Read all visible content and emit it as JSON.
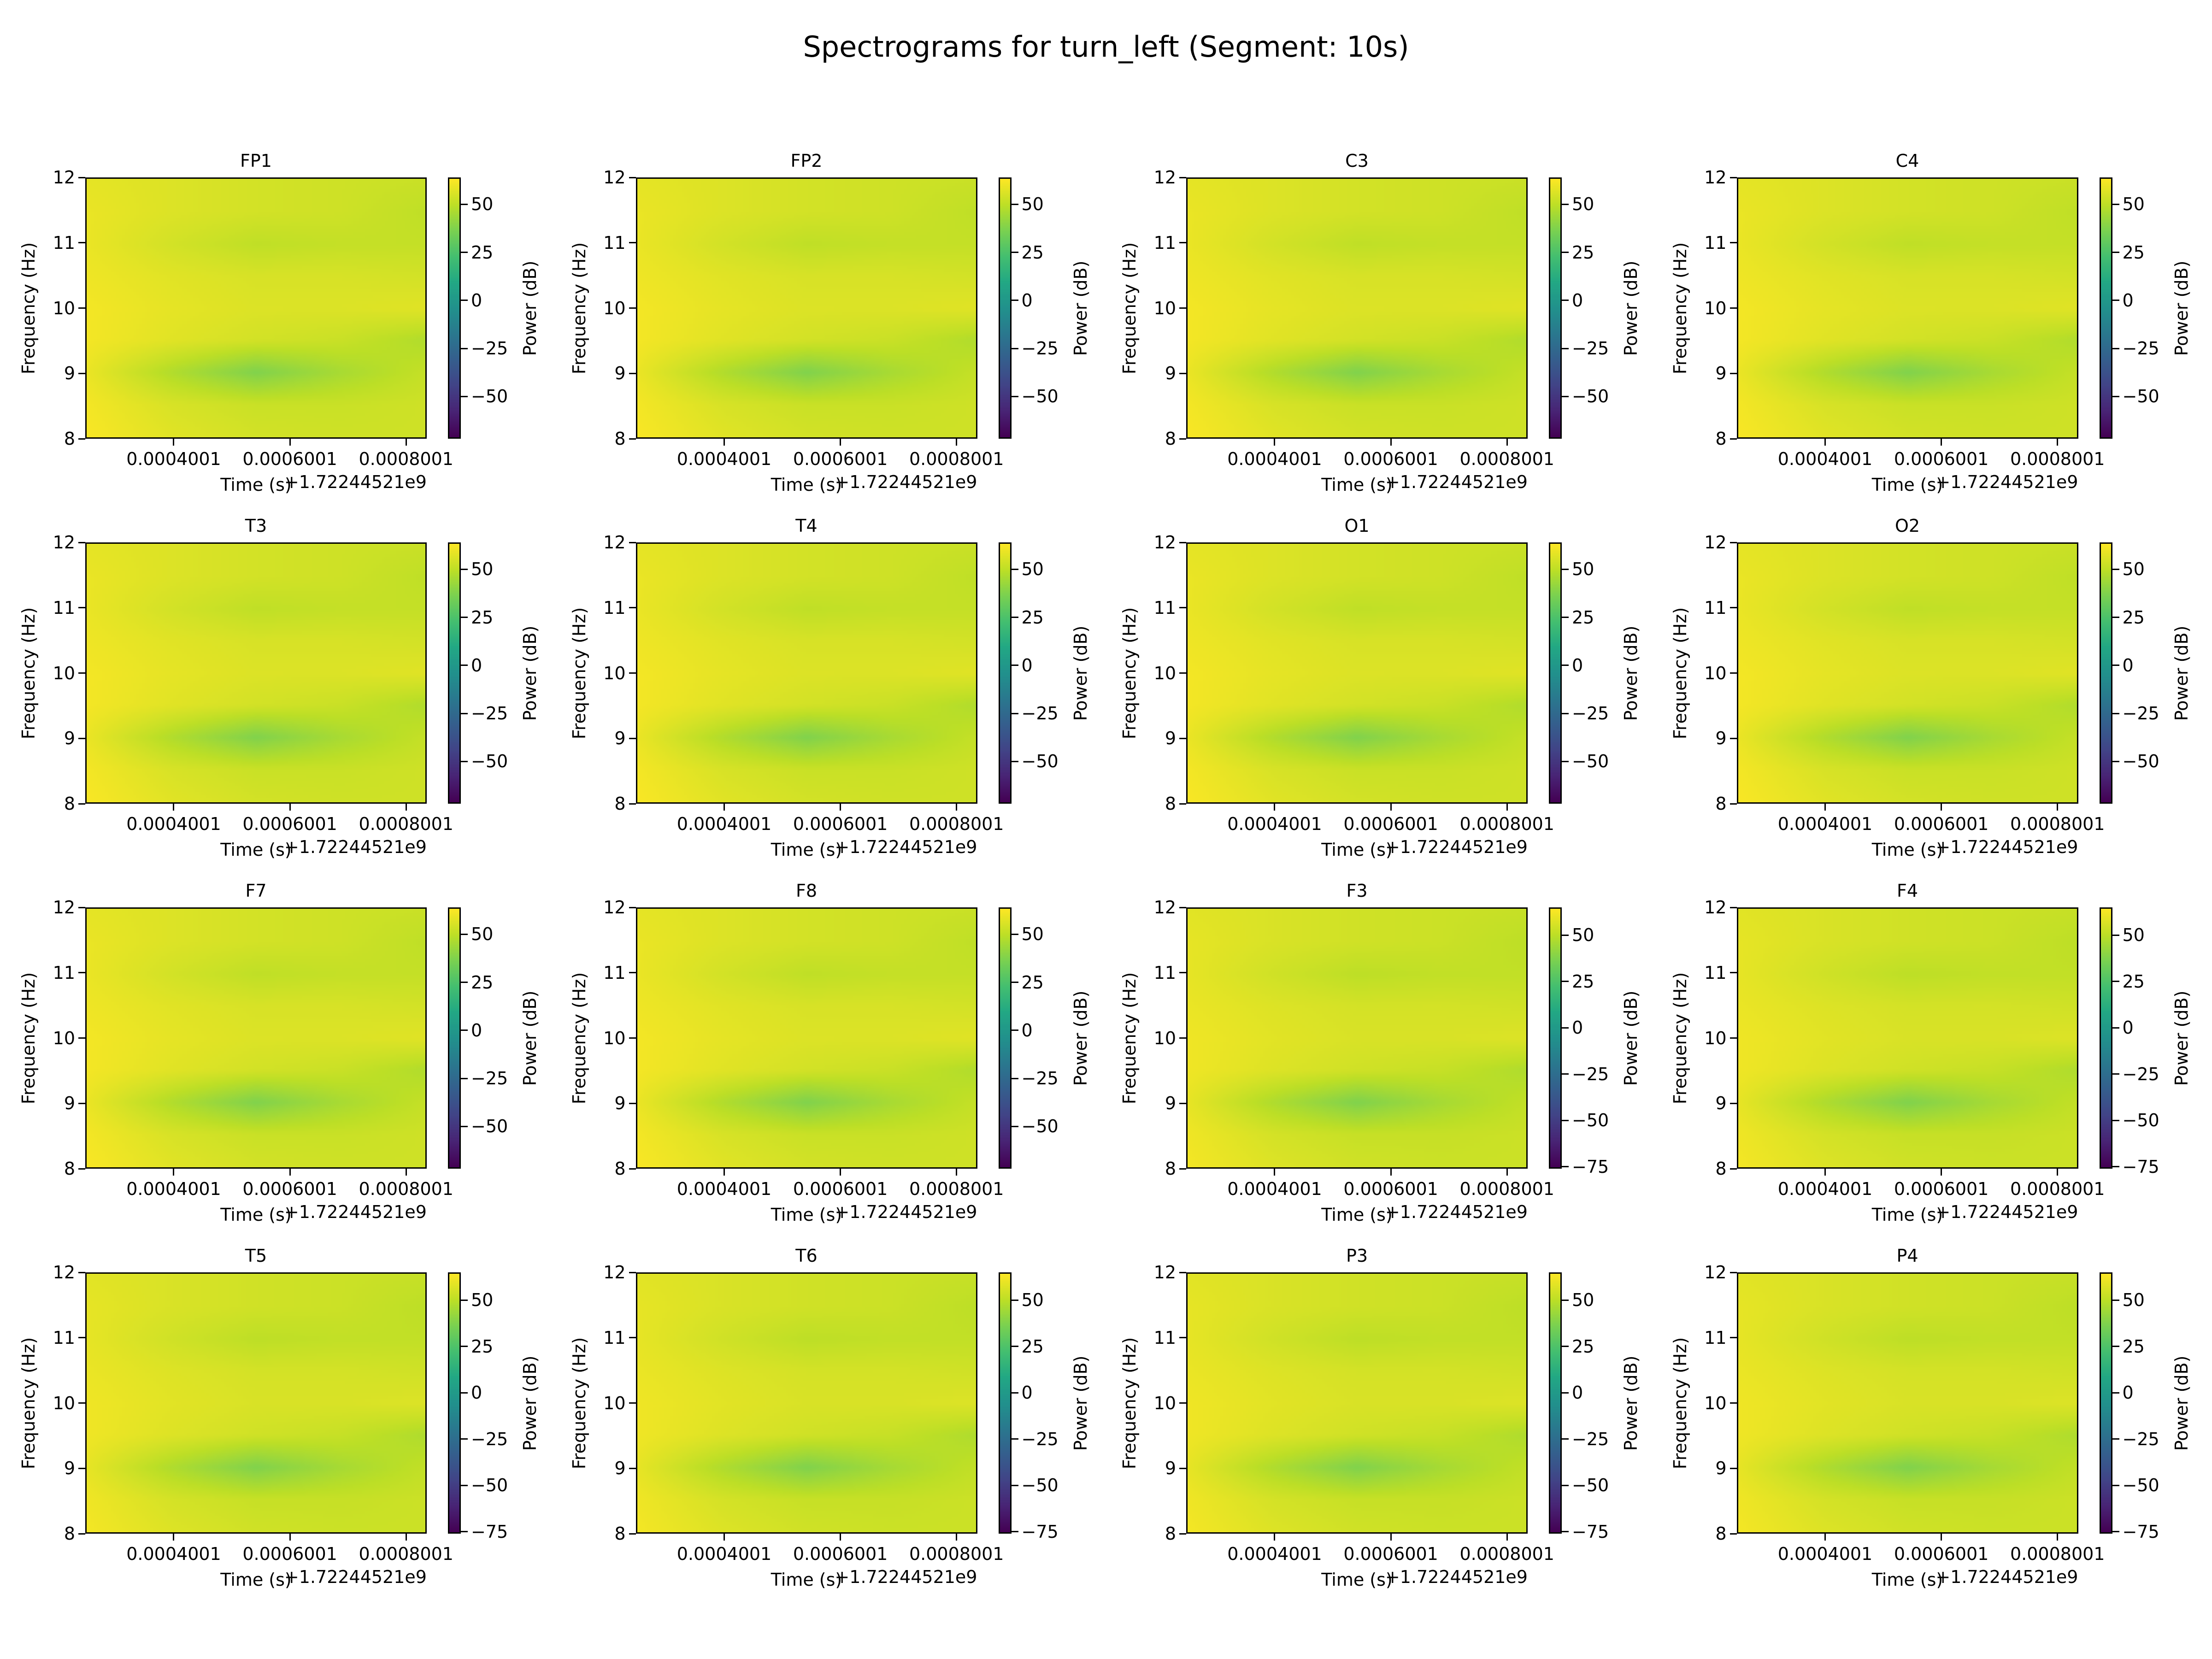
{
  "title": "Spectrograms for turn_left (Segment: 10s)",
  "chart_data": [
    {
      "type": "heatmap",
      "title": "FP1",
      "clim": [
        -72,
        64
      ],
      "cbar_ticks": [
        50,
        25,
        0,
        -25,
        -50
      ]
    },
    {
      "type": "heatmap",
      "title": "FP2",
      "clim": [
        -72,
        64
      ],
      "cbar_ticks": [
        50,
        25,
        0,
        -25,
        -50
      ]
    },
    {
      "type": "heatmap",
      "title": "C3",
      "clim": [
        -72,
        64
      ],
      "cbar_ticks": [
        50,
        25,
        0,
        -25,
        -50
      ]
    },
    {
      "type": "heatmap",
      "title": "C4",
      "clim": [
        -72,
        64
      ],
      "cbar_ticks": [
        50,
        25,
        0,
        -25,
        -50
      ]
    },
    {
      "type": "heatmap",
      "title": "T3",
      "clim": [
        -72,
        64
      ],
      "cbar_ticks": [
        50,
        25,
        0,
        -25,
        -50
      ]
    },
    {
      "type": "heatmap",
      "title": "T4",
      "clim": [
        -72,
        64
      ],
      "cbar_ticks": [
        50,
        25,
        0,
        -25,
        -50
      ]
    },
    {
      "type": "heatmap",
      "title": "O1",
      "clim": [
        -72,
        64
      ],
      "cbar_ticks": [
        50,
        25,
        0,
        -25,
        -50
      ]
    },
    {
      "type": "heatmap",
      "title": "O2",
      "clim": [
        -72,
        64
      ],
      "cbar_ticks": [
        50,
        25,
        0,
        -25,
        -50
      ]
    },
    {
      "type": "heatmap",
      "title": "F7",
      "clim": [
        -72,
        64
      ],
      "cbar_ticks": [
        50,
        25,
        0,
        -25,
        -50
      ]
    },
    {
      "type": "heatmap",
      "title": "F8",
      "clim": [
        -72,
        64
      ],
      "cbar_ticks": [
        50,
        25,
        0,
        -25,
        -50
      ]
    },
    {
      "type": "heatmap",
      "title": "F3",
      "clim": [
        -76,
        65
      ],
      "cbar_ticks": [
        50,
        25,
        0,
        -25,
        -50,
        -75
      ]
    },
    {
      "type": "heatmap",
      "title": "F4",
      "clim": [
        -76,
        65
      ],
      "cbar_ticks": [
        50,
        25,
        0,
        -25,
        -50,
        -75
      ]
    },
    {
      "type": "heatmap",
      "title": "T5",
      "clim": [
        -76,
        65
      ],
      "cbar_ticks": [
        50,
        25,
        0,
        -25,
        -50,
        -75
      ]
    },
    {
      "type": "heatmap",
      "title": "T6",
      "clim": [
        -76,
        65
      ],
      "cbar_ticks": [
        50,
        25,
        0,
        -25,
        -50,
        -75
      ]
    },
    {
      "type": "heatmap",
      "title": "P3",
      "clim": [
        -76,
        65
      ],
      "cbar_ticks": [
        50,
        25,
        0,
        -25,
        -50,
        -75
      ]
    },
    {
      "type": "heatmap",
      "title": "P4",
      "clim": [
        -76,
        65
      ],
      "cbar_ticks": [
        50,
        25,
        0,
        -25,
        -50,
        -75
      ]
    }
  ],
  "shared": {
    "xlabel": "Time (s)",
    "x_offset_text": "+1.72244521e9",
    "ylabel": "Frequency (Hz)",
    "cbar_label": "Power (dB)",
    "colormap": "viridis",
    "xlim": [
      0.0002478,
      0.0008356
    ],
    "x_ticks": [
      "0.0004001",
      "0.0006001",
      "0.0008001"
    ],
    "ylim": [
      8,
      12
    ],
    "y_ticks": [
      8,
      9,
      10,
      11,
      12
    ],
    "z_freqs": [
      8,
      8.5,
      9,
      9.5,
      10,
      10.5,
      11,
      11.5,
      12
    ],
    "z_power_db": [
      [
        63,
        58,
        55,
        54,
        54
      ],
      [
        62,
        56,
        53,
        53,
        54
      ],
      [
        60,
        48,
        38,
        46,
        52
      ],
      [
        62,
        58,
        55,
        53,
        48
      ],
      [
        62,
        59,
        57,
        57,
        58
      ],
      [
        61,
        58,
        56,
        56,
        55
      ],
      [
        60,
        55,
        51,
        52,
        52
      ],
      [
        60,
        57,
        55,
        54,
        51
      ],
      [
        59,
        57,
        55,
        54,
        53
      ]
    ]
  }
}
